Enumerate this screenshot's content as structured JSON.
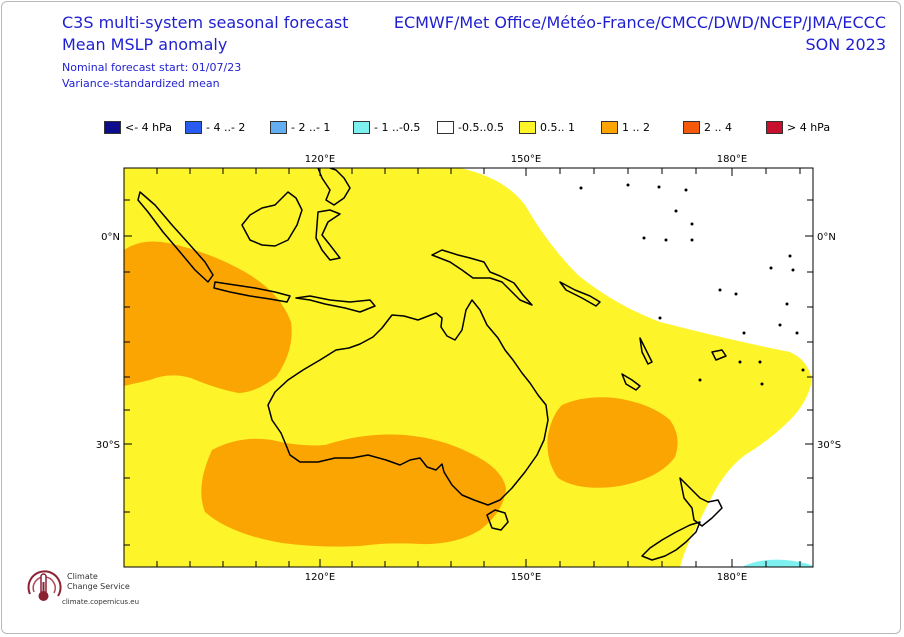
{
  "title": {
    "line1": "C3S multi-system seasonal forecast",
    "line2": "Mean MSLP anomaly",
    "line3": "Nominal forecast start: 01/07/23",
    "line4": "Variance-standardized mean"
  },
  "models": {
    "line1": "ECMWF/Met Office/Météo-France/CMCC/DWD/NCEP/JMA/ECCC",
    "line2": "SON 2023"
  },
  "legend": [
    {
      "label": "<- 4 hPa",
      "color": "#0c0c8c"
    },
    {
      "label": "- 4 ..- 2",
      "color": "#2a5bf0"
    },
    {
      "label": "- 2 ..- 1",
      "color": "#62aef0"
    },
    {
      "label": "- 1 ..-0.5",
      "color": "#7ff0f0"
    },
    {
      "label": "-0.5..0.5",
      "color": "#ffffff"
    },
    {
      "label": "0.5.. 1",
      "color": "#fdf42a"
    },
    {
      "label": "1 .. 2",
      "color": "#fba502"
    },
    {
      "label": "2 .. 4",
      "color": "#f55a0c"
    },
    {
      "label": "> 4 hPa",
      "color": "#c8102e"
    }
  ],
  "axes": {
    "lon_ticks": [
      "120°E",
      "150°E",
      "180°E"
    ],
    "lat_ticks": [
      "0°N",
      "30°S"
    ]
  },
  "colors": {
    "title": "#1f1fd1",
    "field_yellow": "#fdf42a",
    "field_orange": "#fba502",
    "field_cyan": "#7ff0f0"
  },
  "branding": {
    "name_line1": "Climate",
    "name_line2": "Change Service",
    "url": "climate.copernicus.eu"
  }
}
